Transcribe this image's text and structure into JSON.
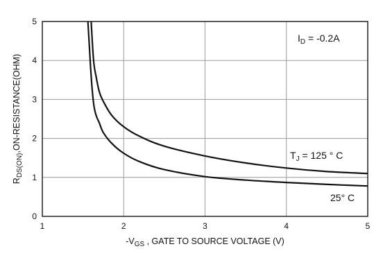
{
  "chart_data": {
    "type": "line",
    "xlabel": {
      "prefix": "-V",
      "sub": "GS",
      "suffix": " , GATE TO SOURCE VOLTAGE (V)"
    },
    "ylabel": {
      "prefix": "R",
      "sub": "DS(ON)",
      "suffix": ",ON-RESISTANCE(OHM)"
    },
    "xlim": [
      1,
      5
    ],
    "ylim": [
      0,
      5
    ],
    "x_ticks": [
      1,
      2,
      3,
      4,
      5
    ],
    "y_ticks": [
      0,
      1,
      2,
      3,
      4,
      5
    ],
    "grid": true,
    "annotations": {
      "id": {
        "prefix": "I",
        "sub": "D",
        "suffix": " = -0.2A"
      },
      "t125": {
        "prefix": "T",
        "sub": "J",
        "suffix": " = 125 ° C"
      },
      "t25": "25° C"
    },
    "series": [
      {
        "x": [
          1.6,
          1.63,
          1.66,
          1.7,
          1.75,
          1.85,
          2.0,
          2.2,
          2.5,
          3.0,
          3.5,
          4.0,
          4.5,
          5.0
        ],
        "y": [
          5.0,
          4.0,
          3.6,
          3.2,
          2.95,
          2.6,
          2.3,
          2.05,
          1.8,
          1.55,
          1.37,
          1.24,
          1.15,
          1.1
        ]
      },
      {
        "x": [
          1.56,
          1.58,
          1.6,
          1.63,
          1.66,
          1.7,
          1.75,
          1.85,
          2.0,
          2.2,
          2.5,
          3.0,
          3.5,
          4.0,
          4.5,
          5.0
        ],
        "y": [
          5.0,
          4.3,
          3.6,
          2.9,
          2.6,
          2.4,
          2.15,
          1.88,
          1.62,
          1.4,
          1.2,
          1.02,
          0.93,
          0.87,
          0.82,
          0.78
        ]
      }
    ]
  }
}
